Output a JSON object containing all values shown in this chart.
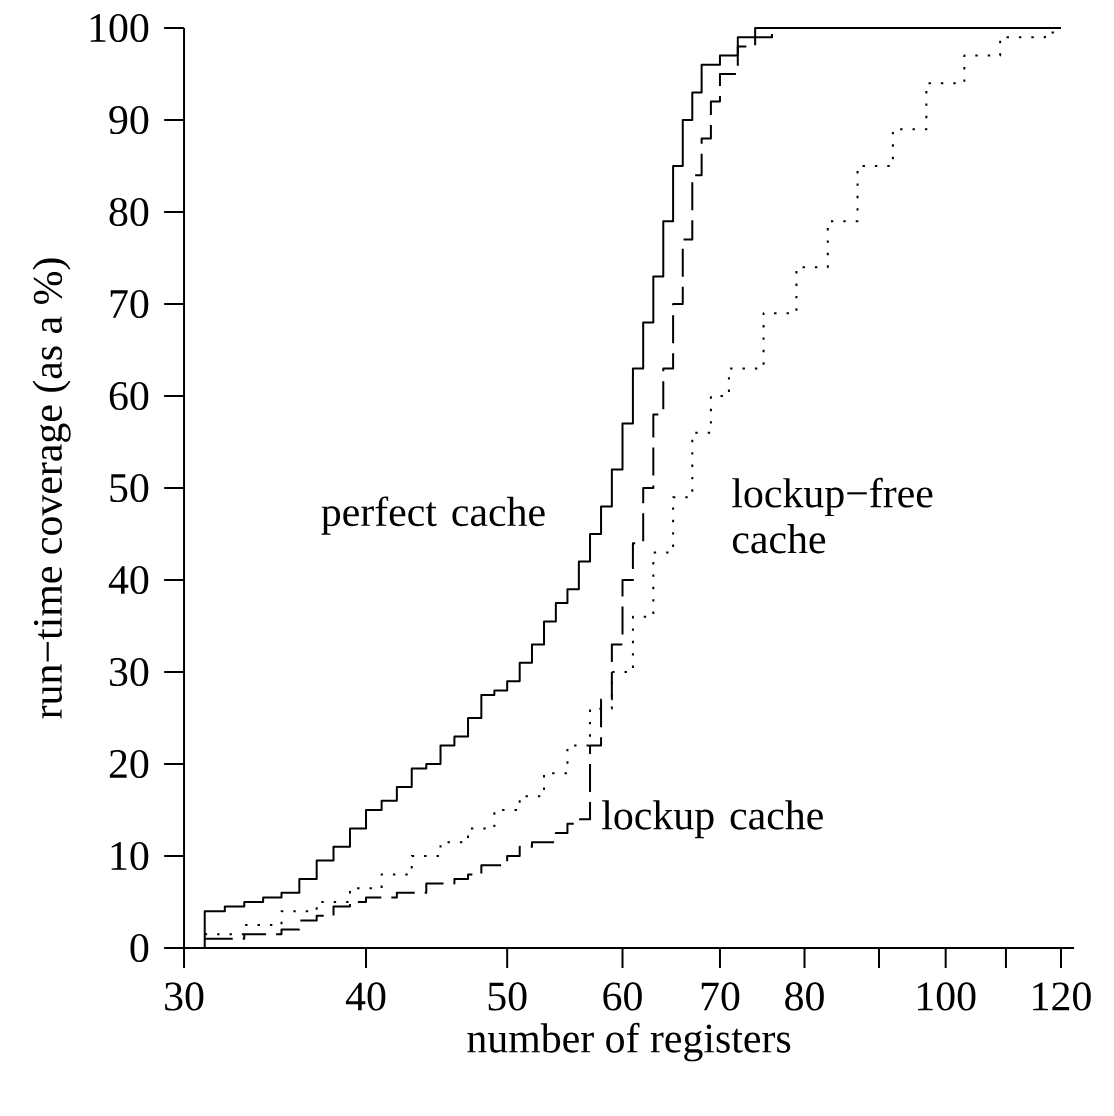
{
  "chart_data": {
    "type": "step",
    "xlabel": "number of registers",
    "ylabel": "run−time coverage (as a %)",
    "log": "x",
    "legend": false,
    "grid": false,
    "marker": "none",
    "xlim": [
      30,
      122.5
    ],
    "xticks": [
      30,
      40,
      50,
      60,
      70,
      80,
      {
        "value": 90,
        "label": null
      },
      100,
      {
        "value": 110,
        "label": null
      },
      120
    ],
    "ylim": [
      0,
      100
    ],
    "yticks": [
      0,
      10,
      20,
      30,
      40,
      50,
      60,
      70,
      80,
      90,
      100
    ],
    "series": [
      {
        "name": "perfect cache",
        "color": "#000000",
        "line_style": "solid",
        "x": [
          30,
          31,
          32,
          33,
          34,
          35,
          36,
          37,
          38,
          39,
          40,
          41,
          42,
          43,
          44,
          45,
          46,
          47,
          48,
          49,
          50,
          51,
          52,
          53,
          54,
          55,
          56,
          57,
          58,
          59,
          60,
          61,
          62,
          63,
          64,
          65,
          66,
          67,
          68,
          70,
          72,
          74,
          120
        ],
        "values": [
          0,
          4,
          4.5,
          5,
          5.5,
          6,
          7.5,
          9.5,
          11,
          13,
          15,
          16,
          17.5,
          19.5,
          20,
          22,
          23,
          25,
          27.5,
          28,
          29,
          31,
          33,
          35.5,
          37.5,
          39,
          42,
          45,
          48,
          52,
          57,
          63,
          68,
          73,
          79,
          85,
          90,
          93,
          96,
          97,
          99,
          100,
          100
        ]
      },
      {
        "name": "lockup cache",
        "color": "#000000",
        "line_style": "dashed",
        "x": [
          31,
          33,
          35,
          36,
          37,
          38,
          39,
          40,
          42,
          44,
          46,
          47,
          48,
          50,
          51,
          52,
          54,
          55,
          56,
          57,
          58,
          59,
          60,
          61,
          62,
          63,
          64,
          65,
          66,
          67,
          68,
          69,
          70,
          72,
          74,
          76,
          120
        ],
        "values": [
          1,
          1.5,
          2,
          3,
          3.5,
          4.5,
          5,
          5.5,
          6,
          7,
          7.5,
          8,
          9,
          10,
          11,
          11.5,
          12.5,
          13.5,
          14,
          22,
          27,
          33,
          40,
          44,
          50,
          58,
          63,
          70,
          77,
          84,
          88,
          92,
          95,
          98,
          99,
          100,
          100
        ]
      },
      {
        "name": "lockup−free cache",
        "color": "#000000",
        "line_style": "dotted",
        "x": [
          31,
          33,
          35,
          37,
          39,
          41,
          43,
          45,
          47,
          49,
          51,
          53,
          55,
          57,
          59,
          61,
          63,
          65,
          67,
          69,
          71,
          75,
          79,
          83,
          87,
          92,
          97,
          103,
          109,
          117,
          120
        ],
        "values": [
          1.5,
          2.5,
          4,
          5,
          6.5,
          8,
          10,
          11.5,
          13,
          15,
          16.5,
          19,
          22,
          26,
          30,
          36,
          43,
          49,
          56,
          60,
          63,
          69,
          74,
          79,
          85,
          89,
          94,
          97,
          99,
          99.5,
          99.5
        ]
      }
    ]
  }
}
